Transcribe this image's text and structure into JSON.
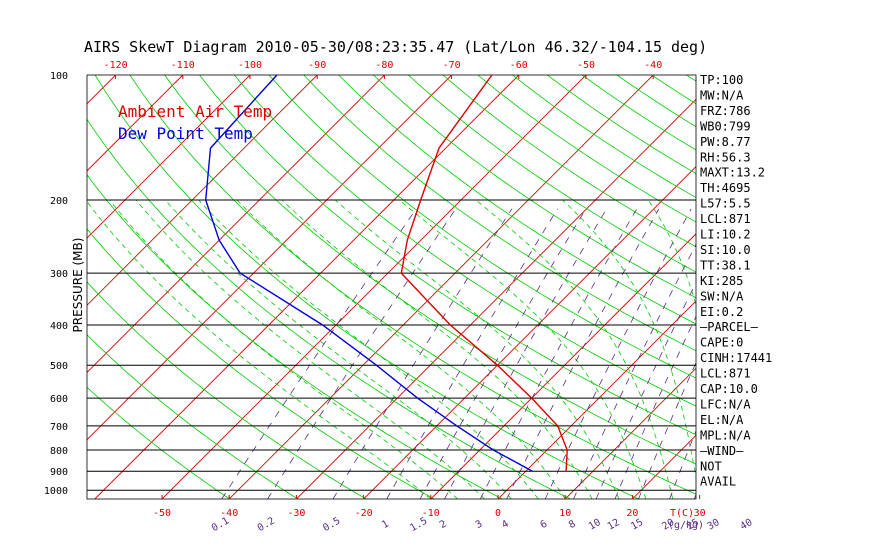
{
  "chart_data": {
    "type": "line",
    "title": "AIRS SkewT Diagram 2010-05-30/08:23:35.47 (Lat/Lon 46.32/-104.15 deg)",
    "ylabel": "PRESSURE (MB)",
    "y_scale": "log",
    "ylim": [
      1050,
      100
    ],
    "pressure_ticks": [
      "100",
      "200",
      "300",
      "400",
      "500",
      "600",
      "700",
      "800",
      "900",
      "1000"
    ],
    "top_temp_ticks": [
      "-120",
      "-110",
      "-100",
      "-90",
      "-80",
      "-70",
      "-60",
      "-50",
      "-40"
    ],
    "bottom_temp_ticks": [
      "-50",
      "-40",
      "-30",
      "-20",
      "-10",
      "0",
      "10",
      "20",
      "30"
    ],
    "bottom_unit_label": "T(C)",
    "mixing_ratio_labels": [
      "0.1",
      "0.2",
      "0.5",
      "1",
      "1.5",
      "2",
      "3",
      "4",
      "6",
      "8",
      "10",
      "12",
      "15",
      "20",
      "25",
      "30",
      "40"
    ],
    "mixing_ratio_unit": "(g/kg)",
    "legend": [
      {
        "name": "Ambient Air Temp",
        "color": "#dd0000"
      },
      {
        "name": "Dew Point Temp",
        "color": "#0000dd"
      }
    ],
    "series": [
      {
        "name": "Ambient Air Temp",
        "color": "#dd0000",
        "points": [
          [
            900,
            6
          ],
          [
            800,
            3
          ],
          [
            700,
            -2
          ],
          [
            600,
            -10
          ],
          [
            500,
            -20
          ],
          [
            400,
            -33
          ],
          [
            300,
            -48
          ],
          [
            250,
            -52
          ],
          [
            200,
            -56
          ],
          [
            150,
            -61
          ],
          [
            100,
            -64
          ]
        ]
      },
      {
        "name": "Dew Point Temp",
        "color": "#0000dd",
        "points": [
          [
            900,
            1
          ],
          [
            800,
            -8
          ],
          [
            700,
            -17
          ],
          [
            600,
            -27
          ],
          [
            500,
            -38
          ],
          [
            400,
            -52
          ],
          [
            300,
            -72
          ],
          [
            250,
            -80
          ],
          [
            200,
            -88
          ],
          [
            150,
            -95
          ],
          [
            100,
            -96
          ]
        ]
      }
    ],
    "colors": {
      "isotherm": "#e00000",
      "dry_adiabat": "#00cc00",
      "moist_adiabat": "#00cc00",
      "mixing_ratio": "#5a2d82",
      "isobar": "#000000"
    }
  },
  "indices": [
    "TP:100",
    "MW:N/A",
    "FRZ:786",
    "WB0:799",
    "PW:8.77",
    "RH:56.3",
    "MAXT:13.2",
    "TH:4695",
    "L57:5.5",
    "LCL:871",
    "LI:10.2",
    "SI:10.0",
    "TT:38.1",
    "KI:285",
    "SW:N/A",
    "EI:0.2",
    "—PARCEL—",
    "CAPE:0",
    "CINH:17441",
    "LCL:871",
    "CAP:10.0",
    "LFC:N/A",
    "EL:N/A",
    "MPL:N/A",
    "—WIND—",
    "NOT",
    "AVAIL"
  ]
}
